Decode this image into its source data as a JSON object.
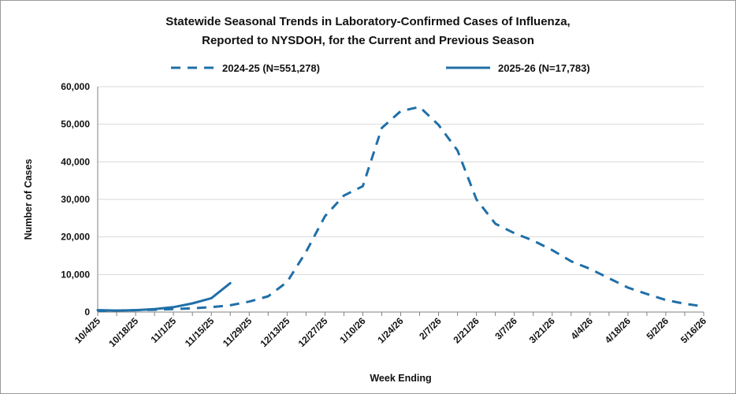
{
  "chart_data": {
    "type": "line",
    "title": [
      "Statewide Seasonal Trends in Laboratory-Confirmed  Cases of Influenza,",
      "Reported to NYSDOH, for the Current and Previous Season"
    ],
    "xlabel": "Week Ending",
    "ylabel": "Number of Cases",
    "ylim": [
      0,
      60000
    ],
    "yticks": [
      0,
      10000,
      20000,
      30000,
      40000,
      50000,
      60000
    ],
    "ytick_labels": [
      "0",
      "10,000",
      "20,000",
      "30,000",
      "40,000",
      "50,000",
      "60,000"
    ],
    "x_tick_labels": [
      "10/4/25",
      "10/18/25",
      "11/1/25",
      "11/15/25",
      "11/29/25",
      "12/13/25",
      "12/27/25",
      "1/10/26",
      "1/24/26",
      "2/7/26",
      "2/21/26",
      "3/7/26",
      "3/21/26",
      "4/4/26",
      "4/18/26",
      "5/2/26",
      "5/16/26"
    ],
    "grid": "horizontal",
    "legend_position": "top",
    "series": [
      {
        "name": "2024-25 (N=551,278)",
        "style": "dashed",
        "color": "#1f6fa8",
        "values": [
          300,
          400,
          500,
          600,
          800,
          1000,
          1300,
          1800,
          2800,
          4200,
          8000,
          16000,
          25500,
          31000,
          33500,
          49000,
          53500,
          54600,
          49800,
          43000,
          30000,
          23500,
          21000,
          19000,
          16500,
          13500,
          11500,
          9000,
          6500,
          4800,
          3200,
          2200,
          1500
        ]
      },
      {
        "name": "2025-26 (N=17,783)",
        "style": "solid",
        "color": "#1f6fa8",
        "values": [
          500,
          400,
          500,
          800,
          1300,
          2300,
          3700,
          7700
        ]
      }
    ]
  }
}
